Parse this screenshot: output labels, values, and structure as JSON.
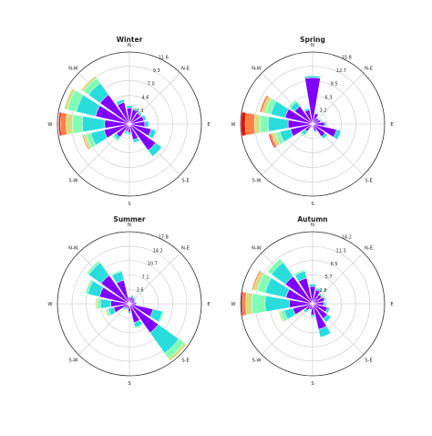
{
  "colors": {
    "bins": [
      "#8000ff",
      "#2adddd",
      "#80ffb4",
      "#d4dd80",
      "#ff8040",
      "#ff0000"
    ],
    "grid": "#c8c8c8",
    "frame": "#333333"
  },
  "directions": [
    "N",
    "N-E",
    "E",
    "S-E",
    "S",
    "S-W",
    "W",
    "N-W"
  ],
  "chart_data": [
    {
      "type": "windrose",
      "title": "Winter",
      "rticks": [
        2.3,
        4.6,
        7.0,
        9.3,
        11.6
      ],
      "rmax": 11.6,
      "sectors": [
        {
          "angle": 0,
          "values": [
            2.6,
            0.4
          ]
        },
        {
          "angle": 22.5,
          "values": [
            2.4,
            0.3
          ]
        },
        {
          "angle": 45,
          "values": [
            2.2,
            0.3
          ]
        },
        {
          "angle": 67.5,
          "values": [
            2.4,
            0.4
          ]
        },
        {
          "angle": 90,
          "values": [
            2.5,
            0.6
          ]
        },
        {
          "angle": 112.5,
          "values": [
            3.6,
            0.8
          ]
        },
        {
          "angle": 135,
          "values": [
            5.2,
            1.2
          ]
        },
        {
          "angle": 157.5,
          "values": [
            2.6,
            0.5
          ]
        },
        {
          "angle": 180,
          "values": [
            1.4,
            0.3
          ]
        },
        {
          "angle": 202.5,
          "values": [
            1.2,
            0.4,
            0.2
          ]
        },
        {
          "angle": 225,
          "values": [
            2.6,
            0.5,
            0.3
          ]
        },
        {
          "angle": 247.5,
          "values": [
            4.2,
            2.2,
            0.8,
            0.4,
            0.2
          ]
        },
        {
          "angle": 270,
          "values": [
            4.0,
            3.6,
            1.6,
            1.0,
            0.9,
            0.3
          ]
        },
        {
          "angle": 292.5,
          "values": [
            5.6,
            3.2,
            1.5,
            0.5
          ]
        },
        {
          "angle": 315,
          "values": [
            5.8,
            2.3,
            1.0,
            0.4
          ]
        },
        {
          "angle": 337.5,
          "values": [
            3.6,
            0.5
          ]
        }
      ]
    },
    {
      "type": "windrose",
      "title": "Spring",
      "rticks": [
        3.2,
        6.3,
        9.5,
        12.7,
        15.8
      ],
      "rmax": 15.8,
      "sectors": [
        {
          "angle": 0,
          "values": [
            10.2,
            0.4
          ]
        },
        {
          "angle": 22.5,
          "values": [
            2.4,
            0.2
          ]
        },
        {
          "angle": 45,
          "values": [
            1.6,
            0.2
          ]
        },
        {
          "angle": 67.5,
          "values": [
            1.8,
            0.3
          ]
        },
        {
          "angle": 90,
          "values": [
            2.6,
            0.4
          ]
        },
        {
          "angle": 112.5,
          "values": [
            5.4,
            1.0
          ]
        },
        {
          "angle": 135,
          "values": [
            3.4,
            0.6
          ]
        },
        {
          "angle": 157.5,
          "values": [
            1.6,
            0.3
          ]
        },
        {
          "angle": 180,
          "values": [
            0.8,
            0.2
          ]
        },
        {
          "angle": 202.5,
          "values": [
            0.7,
            0.2
          ]
        },
        {
          "angle": 225,
          "values": [
            2.0,
            1.0,
            0.4
          ]
        },
        {
          "angle": 247.5,
          "values": [
            5.0,
            2.4,
            1.0,
            0.8,
            0.4,
            0.3
          ]
        },
        {
          "angle": 270,
          "values": [
            5.4,
            4.4,
            1.8,
            1.2,
            2.0,
            0.9
          ]
        },
        {
          "angle": 292.5,
          "values": [
            6.2,
            3.2,
            1.2,
            0.8,
            0.5
          ]
        },
        {
          "angle": 315,
          "values": [
            4.8,
            1.2,
            0.5
          ]
        },
        {
          "angle": 337.5,
          "values": [
            3.2,
            0.4
          ]
        }
      ]
    },
    {
      "type": "windrose",
      "title": "Summer",
      "rticks": [
        3.6,
        7.1,
        10.7,
        14.2,
        17.8
      ],
      "rmax": 17.8,
      "sectors": [
        {
          "angle": 0,
          "values": [
            1.6,
            0.3
          ]
        },
        {
          "angle": 22.5,
          "values": [
            1.8,
            0.4
          ]
        },
        {
          "angle": 45,
          "values": [
            1.6,
            0.3
          ]
        },
        {
          "angle": 67.5,
          "values": [
            1.4,
            0.3
          ]
        },
        {
          "angle": 90,
          "values": [
            1.6,
            0.3
          ]
        },
        {
          "angle": 112.5,
          "values": [
            6.0,
            2.4,
            0.4
          ]
        },
        {
          "angle": 135,
          "values": [
            8.8,
            6.2,
            1.6,
            0.7
          ]
        },
        {
          "angle": 157.5,
          "values": [
            4.8,
            1.2,
            0.3
          ]
        },
        {
          "angle": 180,
          "values": [
            2.0,
            0.4
          ]
        },
        {
          "angle": 202.5,
          "values": [
            1.2,
            0.3
          ]
        },
        {
          "angle": 225,
          "values": [
            1.4,
            0.5,
            0.2
          ]
        },
        {
          "angle": 247.5,
          "values": [
            4.0,
            1.4,
            0.5,
            0.3
          ]
        },
        {
          "angle": 270,
          "values": [
            4.6,
            2.6,
            0.8,
            0.4
          ]
        },
        {
          "angle": 292.5,
          "values": [
            7.6,
            3.0,
            0.6
          ]
        },
        {
          "angle": 315,
          "values": [
            8.6,
            3.8,
            0.6
          ]
        },
        {
          "angle": 337.5,
          "values": [
            6.0,
            2.2,
            0.3
          ]
        }
      ]
    },
    {
      "type": "windrose",
      "title": "Autumn",
      "rticks": [
        2.8,
        5.7,
        8.5,
        11.3,
        14.2
      ],
      "rmax": 14.2,
      "sectors": [
        {
          "angle": 0,
          "values": [
            3.4,
            0.5
          ]
        },
        {
          "angle": 22.5,
          "values": [
            2.8,
            0.4
          ]
        },
        {
          "angle": 45,
          "values": [
            2.2,
            0.3
          ]
        },
        {
          "angle": 67.5,
          "values": [
            2.4,
            0.3
          ]
        },
        {
          "angle": 90,
          "values": [
            2.2,
            0.4
          ]
        },
        {
          "angle": 112.5,
          "values": [
            3.0,
            0.5
          ]
        },
        {
          "angle": 135,
          "values": [
            3.6,
            0.9
          ]
        },
        {
          "angle": 157.5,
          "values": [
            5.2,
            1.6
          ]
        },
        {
          "angle": 180,
          "values": [
            2.2,
            0.4
          ]
        },
        {
          "angle": 202.5,
          "values": [
            1.2,
            0.2
          ]
        },
        {
          "angle": 225,
          "values": [
            1.6,
            0.6,
            0.2
          ]
        },
        {
          "angle": 247.5,
          "values": [
            4.0,
            1.8,
            0.8,
            0.3
          ]
        },
        {
          "angle": 270,
          "values": [
            4.6,
            4.8,
            2.6,
            1.2,
            0.6,
            0.3
          ]
        },
        {
          "angle": 292.5,
          "values": [
            5.4,
            4.2,
            1.6,
            0.8,
            0.3
          ]
        },
        {
          "angle": 315,
          "values": [
            6.6,
            3.4,
            0.9
          ]
        },
        {
          "angle": 337.5,
          "values": [
            5.2,
            1.4,
            0.3
          ]
        }
      ]
    }
  ]
}
